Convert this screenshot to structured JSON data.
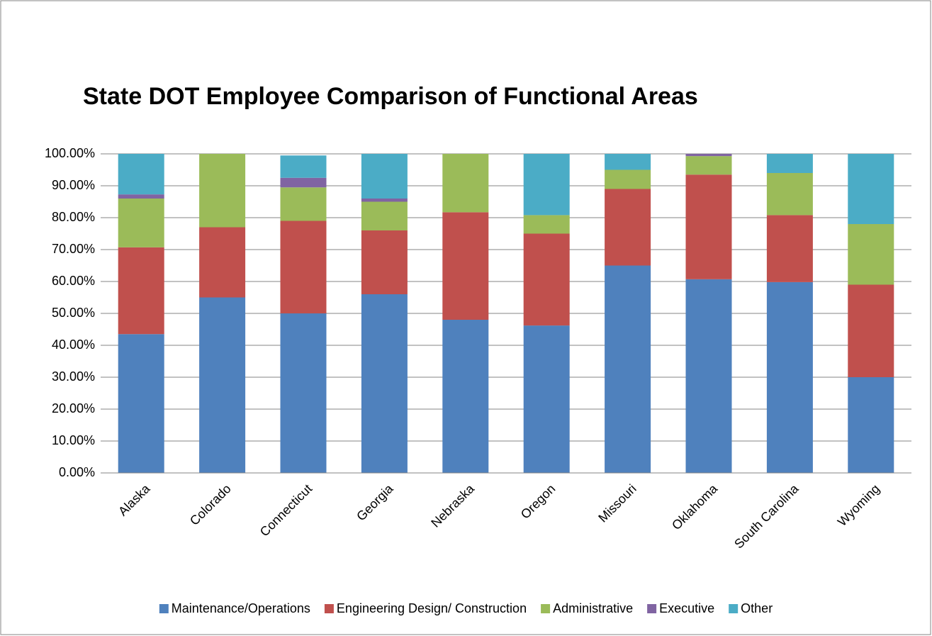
{
  "chart_data": {
    "type": "stacked_bar",
    "title": "State DOT Employee Comparison of Functional Areas",
    "categories": [
      "Alaska",
      "Colorado",
      "Connecticut",
      "Georgia",
      "Nebraska",
      "Oregon",
      "Missouri",
      "Oklahoma",
      "South Carolina",
      "Wyoming"
    ],
    "series": [
      {
        "name": "Maintenance/Operations",
        "color": "#4f81bd",
        "values": [
          43.5,
          55,
          50,
          56,
          48,
          46.2,
          65,
          60.7,
          59.8,
          30
        ]
      },
      {
        "name": "Engineering Design/ Construction",
        "color": "#c0504d",
        "values": [
          27.2,
          22,
          29,
          20,
          33.7,
          28.8,
          24,
          32.8,
          21,
          29
        ]
      },
      {
        "name": "Administrative",
        "color": "#9bbb59",
        "values": [
          15.3,
          23,
          10.5,
          9,
          18.3,
          5.8,
          6,
          5.8,
          13.2,
          19
        ]
      },
      {
        "name": "Executive",
        "color": "#8064a2",
        "values": [
          1.3,
          0,
          3,
          1,
          0,
          0,
          0,
          0.7,
          0,
          0
        ]
      },
      {
        "name": "Other",
        "color": "#4bacc6",
        "values": [
          12.7,
          0,
          7,
          14,
          0,
          19.2,
          5,
          0,
          6,
          22
        ]
      }
    ],
    "ylim": [
      0,
      100
    ],
    "yticks": [
      {
        "value": 0,
        "label": "0.00%"
      },
      {
        "value": 10,
        "label": "10.00%"
      },
      {
        "value": 20,
        "label": "20.00%"
      },
      {
        "value": 30,
        "label": "30.00%"
      },
      {
        "value": 40,
        "label": "40.00%"
      },
      {
        "value": 50,
        "label": "50.00%"
      },
      {
        "value": 60,
        "label": "60.00%"
      },
      {
        "value": 70,
        "label": "70.00%"
      },
      {
        "value": 80,
        "label": "80.00%"
      },
      {
        "value": 90,
        "label": "90.00%"
      },
      {
        "value": 100,
        "label": "100.00%"
      }
    ],
    "grid": true,
    "legend": "bottom"
  }
}
